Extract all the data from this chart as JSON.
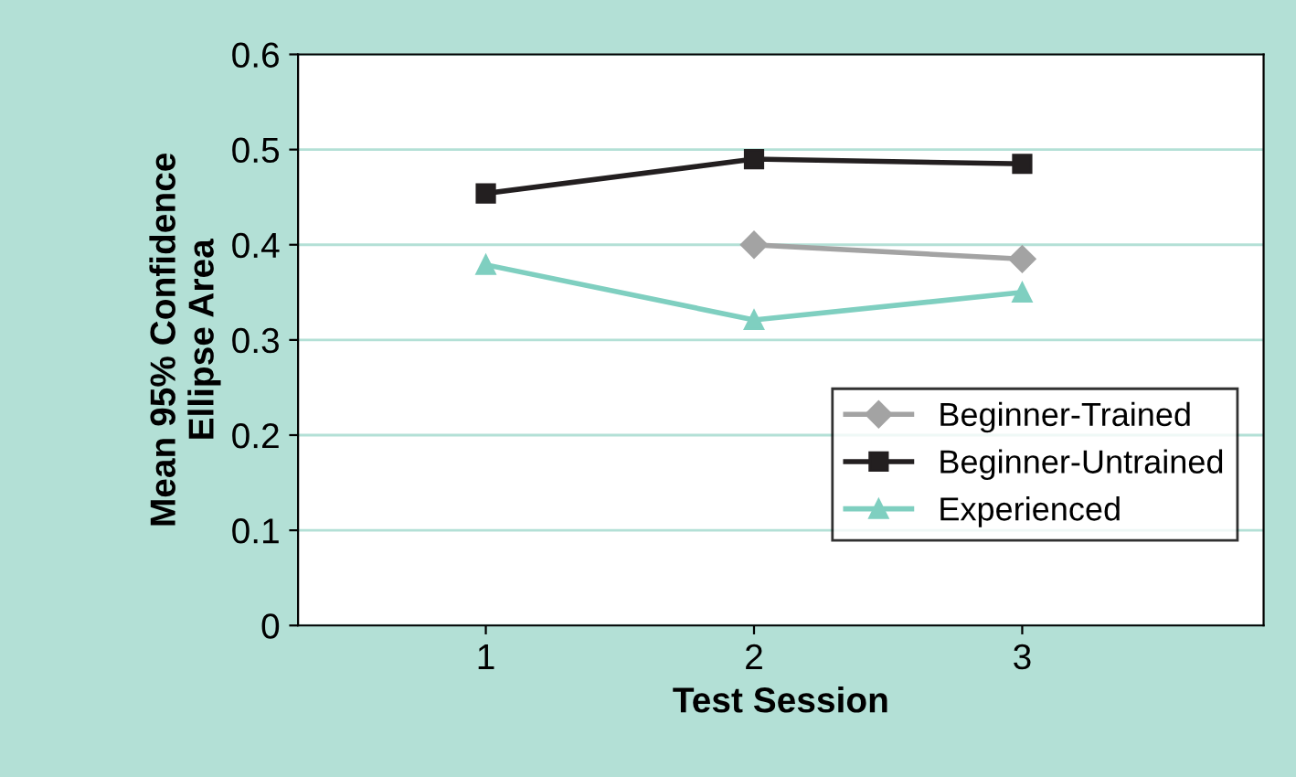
{
  "chart_data": {
    "type": "line",
    "xlabel": "Test Session",
    "ylabel": "Mean 95% Confidence\nEllipse Area",
    "x": [
      1,
      2,
      3
    ],
    "xlim": [
      0.3,
      3.9
    ],
    "xticks": [
      1,
      2,
      3
    ],
    "ylim": [
      0,
      0.6
    ],
    "yticks": [
      0,
      0.1,
      0.2,
      0.3,
      0.4,
      0.5,
      0.6
    ],
    "grid": "y",
    "legend": "bottom right",
    "series": [
      {
        "name": "Beginner-Trained",
        "color": "#a3a3a3",
        "marker": "diamond",
        "values": [
          null,
          0.4,
          0.385
        ]
      },
      {
        "name": "Beginner-Untrained",
        "color": "#231f20",
        "marker": "square",
        "values": [
          0.454,
          0.49,
          0.485
        ]
      },
      {
        "name": "Experienced",
        "color": "#7fcfc0",
        "marker": "triangle",
        "values": [
          0.379,
          0.321,
          0.35
        ]
      }
    ]
  }
}
